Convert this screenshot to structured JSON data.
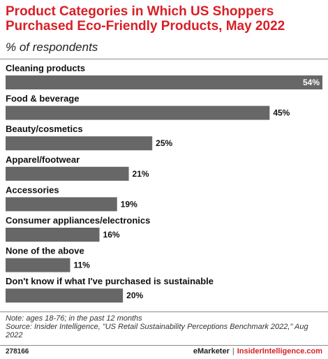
{
  "header": {
    "title": "Product Categories in Which US Shoppers Purchased Eco-Friendly Products, May 2022",
    "subtitle": "% of respondents"
  },
  "chart_data": {
    "type": "bar",
    "orientation": "horizontal",
    "categories": [
      "Cleaning products",
      "Food & beverage",
      "Beauty/cosmetics",
      "Apparel/footwear",
      "Accessories",
      "Consumer appliances/electronics",
      "None of the above",
      "Don't know if what I've purchased is sustainable"
    ],
    "values": [
      54,
      45,
      25,
      21,
      19,
      16,
      11,
      20
    ],
    "value_labels": [
      "54%",
      "45%",
      "25%",
      "21%",
      "19%",
      "16%",
      "11%",
      "20%"
    ],
    "unit": "%",
    "xlim": [
      0,
      54
    ],
    "bar_color": "#676767",
    "grid": false
  },
  "footer": {
    "note": "Note: ages 18-76; in the past 12 months",
    "source": "Source: Insider Intelligence, \"US Retail Sustainability Perceptions Benchmark 2022,\" Aug 2022",
    "chart_id": "278166",
    "brand_emarketer": "eMarketer",
    "brand_separator": "|",
    "brand_insider": "InsiderIntelligence.com"
  },
  "colors": {
    "title": "#d81f26",
    "bar": "#676767",
    "text": "#111111"
  }
}
